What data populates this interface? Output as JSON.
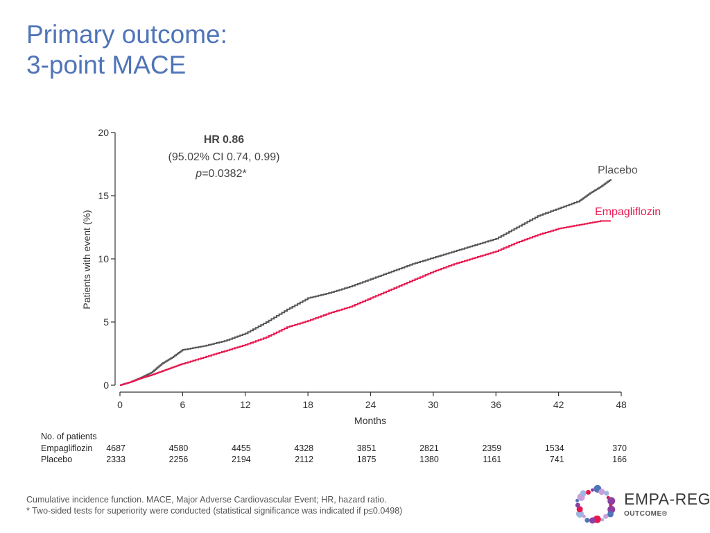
{
  "slide": {
    "title_line1": "Primary outcome:",
    "title_line2": "3-point MACE"
  },
  "chart_data": {
    "type": "line",
    "xlabel": "Months",
    "ylabel": "Patients with event (%)",
    "xlim": [
      0,
      48
    ],
    "ylim": [
      0,
      20
    ],
    "xticks": [
      0,
      6,
      12,
      18,
      24,
      30,
      36,
      42,
      48
    ],
    "yticks": [
      0,
      5,
      10,
      15,
      20
    ],
    "annotation": {
      "hr_label": "HR",
      "hr_value": "0.86",
      "ci": "(95.02% CI 0.74, 0.99)",
      "p_symbol": "p",
      "p_value": "=0.0382*"
    },
    "series": [
      {
        "name": "Placebo",
        "color": "#555555",
        "x": [
          0,
          1,
          2,
          3,
          4,
          5,
          6,
          8,
          10,
          12,
          14,
          16,
          18,
          20,
          22,
          24,
          26,
          28,
          30,
          32,
          34,
          36,
          38,
          40,
          42,
          44,
          45,
          46,
          47
        ],
        "y": [
          0,
          0.25,
          0.6,
          1.0,
          1.7,
          2.2,
          2.8,
          3.1,
          3.5,
          4.1,
          5.0,
          6.0,
          6.9,
          7.3,
          7.8,
          8.4,
          9.0,
          9.6,
          10.1,
          10.6,
          11.1,
          11.6,
          12.5,
          13.4,
          14.0,
          14.6,
          15.2,
          15.7,
          16.3
        ]
      },
      {
        "name": "Empagliflozin",
        "color": "#e8174e",
        "x": [
          0,
          1,
          2,
          3,
          4,
          5,
          6,
          8,
          10,
          12,
          14,
          16,
          18,
          20,
          22,
          24,
          26,
          28,
          30,
          32,
          34,
          36,
          38,
          40,
          42,
          44,
          46,
          47
        ],
        "y": [
          0,
          0.25,
          0.55,
          0.8,
          1.1,
          1.4,
          1.7,
          2.2,
          2.7,
          3.2,
          3.8,
          4.6,
          5.1,
          5.7,
          6.2,
          6.9,
          7.6,
          8.3,
          9.0,
          9.6,
          10.1,
          10.6,
          11.3,
          11.9,
          12.4,
          12.7,
          13.0,
          13.0
        ]
      }
    ]
  },
  "risk_table": {
    "header": "No. of patients",
    "rows": [
      {
        "label": "Empagliflozin",
        "values": [
          "4687",
          "4580",
          "4455",
          "4328",
          "3851",
          "2821",
          "2359",
          "1534",
          "370"
        ]
      },
      {
        "label": "Placebo",
        "values": [
          "2333",
          "2256",
          "2194",
          "2112",
          "1875",
          "1380",
          "1161",
          "741",
          "166"
        ]
      }
    ]
  },
  "footnotes": {
    "line1": "Cumulative incidence function. MACE, Major Adverse Cardiovascular Event; HR, hazard ratio.",
    "line2": "* Two-sided tests for superiority were conducted (statistical significance was indicated if p≤0.0498)"
  },
  "logo": {
    "name": "EMPA-REG",
    "sub": "OUTCOME®",
    "colors": [
      "#e8174e",
      "#8b3fa0",
      "#4f74b8",
      "#c9a0dc",
      "#9fb7e0"
    ]
  }
}
